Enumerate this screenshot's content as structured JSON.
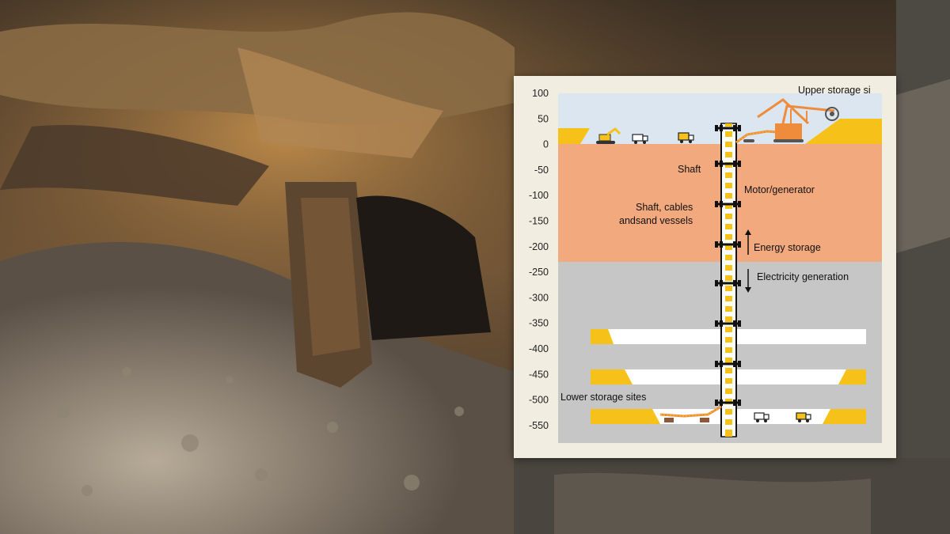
{
  "scene": {
    "description_icon": "cave-rock-background"
  },
  "diagram": {
    "y_axis_ticks": [
      "100",
      "50",
      "0",
      "-50",
      "-100",
      "-150",
      "-200",
      "-250",
      "-300",
      "-350",
      "-400",
      "-450",
      "-500",
      "-550"
    ],
    "labels": {
      "upper_storage": "Upper storage si",
      "shaft": "Shaft",
      "motor_generator": "Motor/generator",
      "shaft_cables": "Shaft, cables",
      "sand_vessels": "andsand vessels",
      "energy_storage": "Energy storage",
      "electricity_generation": "Electricity generation",
      "lower_storage": "Lower storage sites"
    },
    "colors": {
      "sky": "#dbe6f1",
      "soil": "#f2a97e",
      "rock": "#c6c6c6",
      "sand": "#f6c21a",
      "machine": "#ee8c3c"
    },
    "icons": [
      "excavator-icon",
      "truck-icon",
      "truck-icon",
      "bucket-wheel-excavator-icon",
      "conveyor-icon",
      "energy-storage-arrow-icon",
      "electricity-generation-arrow-icon"
    ]
  }
}
